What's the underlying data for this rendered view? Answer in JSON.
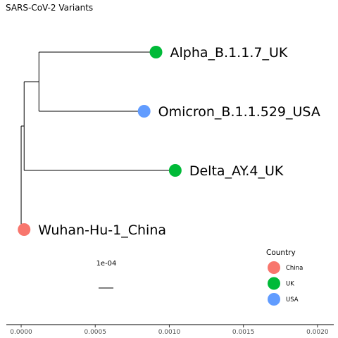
{
  "title": "SARS-CoV-2 Variants",
  "tree": {
    "tips": [
      {
        "name": "Alpha_B.1.1.7_UK",
        "country": "UK",
        "x": 0.00091
      },
      {
        "name": "Omicron_B.1.1.529_USA",
        "country": "USA",
        "x": 0.00083
      },
      {
        "name": "Delta_AY.4_UK",
        "country": "UK",
        "x": 0.00104
      },
      {
        "name": "Wuhan-Hu-1_China",
        "country": "China",
        "x": 2e-05
      }
    ],
    "internal_nodes": [
      0.00012,
      2e-05,
      0.0
    ]
  },
  "x_axis": {
    "ticks": [
      "0.0000",
      "0.0005",
      "0.0010",
      "0.0015",
      "0.0020"
    ],
    "range": [
      -0.0001,
      0.00211
    ]
  },
  "scale_bar": {
    "label": "1e-04",
    "value": 0.0001
  },
  "legend": {
    "title": "Country",
    "items": [
      {
        "label": "China",
        "color": "#F8766D"
      },
      {
        "label": "UK",
        "color": "#00BA38"
      },
      {
        "label": "USA",
        "color": "#619CFF"
      }
    ]
  }
}
